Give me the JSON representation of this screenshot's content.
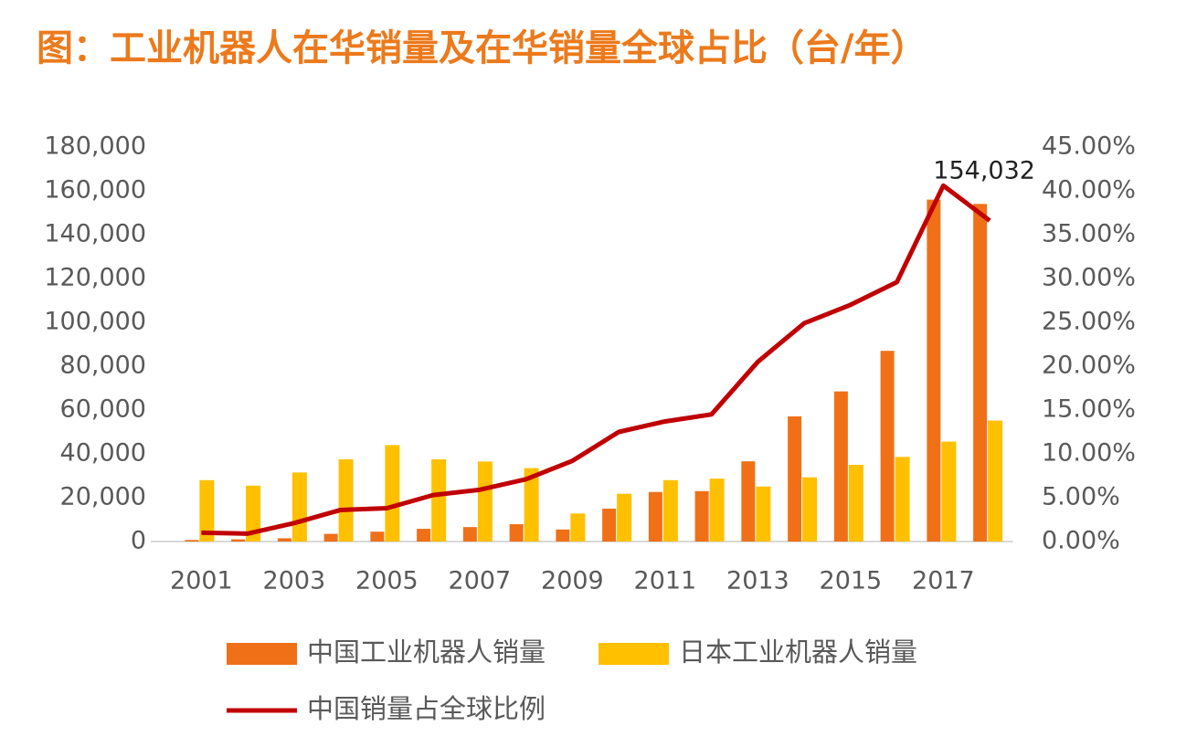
{
  "chart_data": {
    "type": "bar_line",
    "title": "图：工业机器人在华销量及在华销量全球占比（台/年）",
    "categories": [
      "2001",
      null,
      "2003",
      null,
      "2005",
      null,
      "2007",
      null,
      "2009",
      null,
      "2011",
      null,
      "2013",
      null,
      "2015",
      null,
      "2017",
      null
    ],
    "series": [
      {
        "name": "中国工业机器人销量",
        "type": "bar",
        "color": "#f07018",
        "values": [
          700,
          1000,
          1500,
          3500,
          4500,
          5800,
          6600,
          7900,
          5500,
          15000,
          22600,
          23000,
          36600,
          57100,
          68500,
          87000,
          156000,
          154032
        ],
        "value_labels": [
          null,
          null,
          null,
          null,
          null,
          null,
          null,
          null,
          null,
          null,
          null,
          null,
          null,
          null,
          null,
          null,
          null,
          "154,032"
        ]
      },
      {
        "name": "日本工业机器人销量",
        "type": "bar",
        "color": "#ffc000",
        "values": [
          28000,
          25500,
          31500,
          37500,
          44000,
          37500,
          36500,
          33500,
          12800,
          21800,
          28000,
          28700,
          25100,
          29300,
          35000,
          38600,
          45600,
          55200
        ]
      },
      {
        "name": "中国销量占全球比例",
        "type": "line",
        "axis": "y2",
        "color": "#c00000",
        "values": [
          1.0,
          0.9,
          2.1,
          3.6,
          3.8,
          5.3,
          5.9,
          7.1,
          9.2,
          12.5,
          13.7,
          14.5,
          20.5,
          24.9,
          27.0,
          29.6,
          40.6,
          36.6
        ]
      }
    ],
    "ylim": [
      0,
      180000
    ],
    "yticks": [
      0,
      {
        "value": 20000,
        "label": "20,000"
      },
      {
        "value": 40000,
        "label": "40,000"
      },
      {
        "value": 60000,
        "label": "60,000"
      },
      {
        "value": 80000,
        "label": "80,000"
      },
      {
        "value": 100000,
        "label": "100,000"
      },
      {
        "value": 120000,
        "label": "120,000"
      },
      {
        "value": 140000,
        "label": "140,000"
      },
      {
        "value": 160000,
        "label": "160,000"
      },
      {
        "value": 180000,
        "label": "180,000"
      }
    ],
    "y2lim": [
      0,
      45
    ],
    "y2ticks": [
      {
        "value": 0,
        "label": "0.00%"
      },
      {
        "value": 5,
        "label": "5.00%"
      },
      {
        "value": 10,
        "label": "10.00%"
      },
      {
        "value": 15,
        "label": "15.00%"
      },
      {
        "value": 20,
        "label": "20.00%"
      },
      {
        "value": 25,
        "label": "25.00%"
      },
      {
        "value": 30,
        "label": "30.00%"
      },
      {
        "value": 35,
        "label": "35.00%"
      },
      {
        "value": 40,
        "label": "40.00%"
      },
      {
        "value": 45,
        "label": "45.00%"
      }
    ],
    "grid": false,
    "legend": "bottom"
  }
}
